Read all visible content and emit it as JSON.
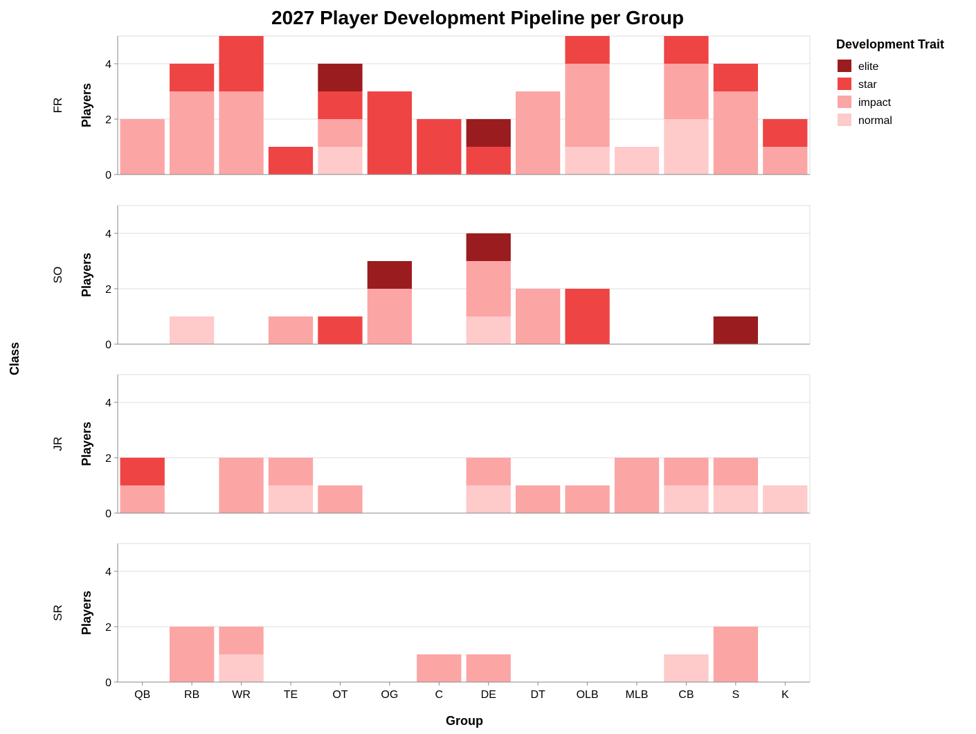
{
  "chart_data": {
    "type": "bar",
    "stacked": true,
    "title": "2027 Player Development Pipeline per Group",
    "xlabel": "Group",
    "ylabel": "Players",
    "row_title": "Class",
    "ylim": [
      0,
      5
    ],
    "yticks": [
      0,
      2,
      4
    ],
    "grid": true,
    "legend_position": "right",
    "categories": [
      "QB",
      "RB",
      "WR",
      "TE",
      "OT",
      "OG",
      "C",
      "DE",
      "DT",
      "OLB",
      "MLB",
      "CB",
      "S",
      "K"
    ],
    "legend": {
      "title": "Development Trait",
      "entries": [
        {
          "name": "elite",
          "color": "#9b1c1f"
        },
        {
          "name": "star",
          "color": "#ef4444"
        },
        {
          "name": "impact",
          "color": "#fca5a5"
        },
        {
          "name": "normal",
          "color": "#fecaca"
        }
      ]
    },
    "stack_order": [
      "normal",
      "impact",
      "star",
      "elite"
    ],
    "facets": [
      {
        "class": "FR",
        "series": [
          {
            "name": "normal",
            "values": [
              0,
              0,
              0,
              0,
              1,
              0,
              0,
              0,
              0,
              1,
              1,
              2,
              0,
              0
            ]
          },
          {
            "name": "impact",
            "values": [
              2,
              3,
              3,
              0,
              1,
              0,
              0,
              0,
              3,
              3,
              0,
              2,
              3,
              1
            ]
          },
          {
            "name": "star",
            "values": [
              0,
              1,
              2,
              1,
              1,
              3,
              2,
              1,
              0,
              1,
              0,
              1,
              1,
              1
            ]
          },
          {
            "name": "elite",
            "values": [
              0,
              0,
              0,
              0,
              1,
              0,
              0,
              1,
              0,
              0,
              0,
              0,
              0,
              0
            ]
          }
        ]
      },
      {
        "class": "SO",
        "series": [
          {
            "name": "normal",
            "values": [
              0,
              1,
              0,
              0,
              0,
              0,
              0,
              1,
              0,
              0,
              0,
              0,
              0,
              0
            ]
          },
          {
            "name": "impact",
            "values": [
              0,
              0,
              0,
              1,
              0,
              2,
              0,
              2,
              2,
              0,
              0,
              0,
              0,
              0
            ]
          },
          {
            "name": "star",
            "values": [
              0,
              0,
              0,
              0,
              1,
              0,
              0,
              0,
              0,
              2,
              0,
              0,
              0,
              0
            ]
          },
          {
            "name": "elite",
            "values": [
              0,
              0,
              0,
              0,
              0,
              1,
              0,
              1,
              0,
              0,
              0,
              0,
              1,
              0
            ]
          }
        ]
      },
      {
        "class": "JR",
        "series": [
          {
            "name": "normal",
            "values": [
              0,
              0,
              0,
              1,
              0,
              0,
              0,
              1,
              0,
              0,
              0,
              1,
              1,
              1
            ]
          },
          {
            "name": "impact",
            "values": [
              1,
              0,
              2,
              1,
              1,
              0,
              0,
              1,
              1,
              1,
              2,
              1,
              1,
              0
            ]
          },
          {
            "name": "star",
            "values": [
              1,
              0,
              0,
              0,
              0,
              0,
              0,
              0,
              0,
              0,
              0,
              0,
              0,
              0
            ]
          },
          {
            "name": "elite",
            "values": [
              0,
              0,
              0,
              0,
              0,
              0,
              0,
              0,
              0,
              0,
              0,
              0,
              0,
              0
            ]
          }
        ]
      },
      {
        "class": "SR",
        "series": [
          {
            "name": "normal",
            "values": [
              0,
              0,
              1,
              0,
              0,
              0,
              0,
              0,
              0,
              0,
              0,
              1,
              0,
              0
            ]
          },
          {
            "name": "impact",
            "values": [
              0,
              2,
              1,
              0,
              0,
              0,
              1,
              1,
              0,
              0,
              0,
              0,
              2,
              0
            ]
          },
          {
            "name": "star",
            "values": [
              0,
              0,
              0,
              0,
              0,
              0,
              0,
              0,
              0,
              0,
              0,
              0,
              0,
              0
            ]
          },
          {
            "name": "elite",
            "values": [
              0,
              0,
              0,
              0,
              0,
              0,
              0,
              0,
              0,
              0,
              0,
              0,
              0,
              0
            ]
          }
        ]
      }
    ]
  }
}
